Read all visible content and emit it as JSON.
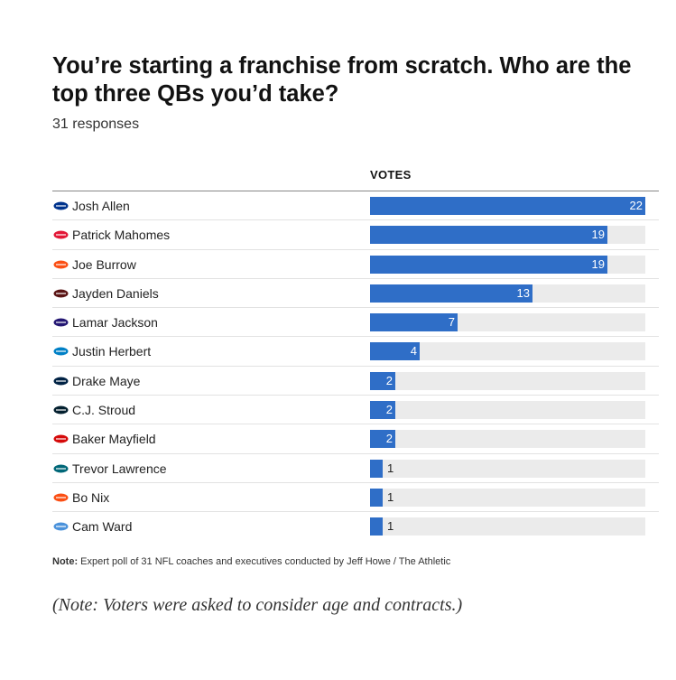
{
  "header": {
    "title": "You’re starting a franchise from scratch. Who are the top three QBs you’d take?",
    "subtitle": "31 responses"
  },
  "chart_data": {
    "type": "bar",
    "orientation": "horizontal",
    "column_header": "VOTES",
    "xlim": [
      0,
      22
    ],
    "bar_color": "#2f6ec7",
    "track_color": "#ebebeb",
    "categories": [
      "Josh Allen",
      "Patrick Mahomes",
      "Joe Burrow",
      "Jayden Daniels",
      "Lamar Jackson",
      "Justin Herbert",
      "Drake Maye",
      "C.J. Stroud",
      "Baker Mayfield",
      "Trevor Lawrence",
      "Bo Nix",
      "Cam Ward"
    ],
    "values": [
      22,
      19,
      19,
      13,
      7,
      4,
      2,
      2,
      2,
      1,
      1,
      1
    ],
    "value_labels": [
      "22",
      "19",
      "19",
      "13",
      "7",
      "4",
      "2",
      "2",
      "2",
      "1",
      "1",
      "1"
    ],
    "team_logo_icons": [
      "bills-logo-icon",
      "chiefs-logo-icon",
      "bengals-logo-icon",
      "commanders-logo-icon",
      "ravens-logo-icon",
      "chargers-logo-icon",
      "patriots-logo-icon",
      "texans-logo-icon",
      "buccaneers-logo-icon",
      "jaguars-logo-icon",
      "broncos-logo-icon",
      "titans-logo-icon"
    ],
    "logo_colors": [
      "#00338d",
      "#e31837",
      "#fb4f14",
      "#5a1414",
      "#241773",
      "#0080c6",
      "#002244",
      "#03202f",
      "#d50a0a",
      "#006778",
      "#fb4f14",
      "#4b92db"
    ]
  },
  "note": {
    "label": "Note:",
    "text": "Expert poll of 31 NFL coaches and executives conducted by Jeff Howe / The Athletic"
  },
  "footnote": "(Note: Voters were asked to consider age and contracts.)"
}
